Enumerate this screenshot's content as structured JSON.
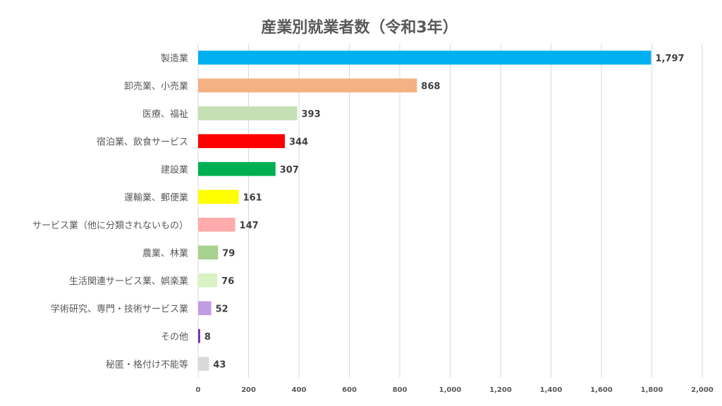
{
  "chart_data": {
    "type": "bar",
    "orientation": "horizontal",
    "title": "産業別就業者数（令和3年）",
    "xlabel": "",
    "ylabel": "",
    "xlim": [
      0,
      2000
    ],
    "x_ticks": [
      0,
      200,
      400,
      600,
      800,
      1000,
      1200,
      1400,
      1600,
      1800,
      2000
    ],
    "x_tick_labels": [
      "0",
      "200",
      "400",
      "600",
      "800",
      "1,000",
      "1,200",
      "1,400",
      "1,600",
      "1,800",
      "2,000"
    ],
    "grid": true,
    "legend": "none",
    "categories": [
      "製造業",
      "卸売業、小売業",
      "医療、福祉",
      "宿泊業、飲食サービス",
      "建設業",
      "運輸業、郵便業",
      "サービス業（他に分類されないもの）",
      "農業、林業",
      "生活関連サービス業、娯楽業",
      "学術研究、専門・技術サービス業",
      "その他",
      "秘匿・格付け不能等"
    ],
    "values": [
      1797,
      868,
      393,
      344,
      307,
      161,
      147,
      79,
      76,
      52,
      8,
      43
    ],
    "data_labels": [
      "1,797",
      "868",
      "393",
      "344",
      "307",
      "161",
      "147",
      "79",
      "76",
      "52",
      "8",
      "43"
    ],
    "colors": [
      "#00b0f0",
      "#f4b183",
      "#c5e0b4",
      "#ff0000",
      "#00b050",
      "#ffff00",
      "#ffabab",
      "#a9d18e",
      "#d9f2c4",
      "#c39be3",
      "#7030a0",
      "#d9d9d9"
    ]
  }
}
